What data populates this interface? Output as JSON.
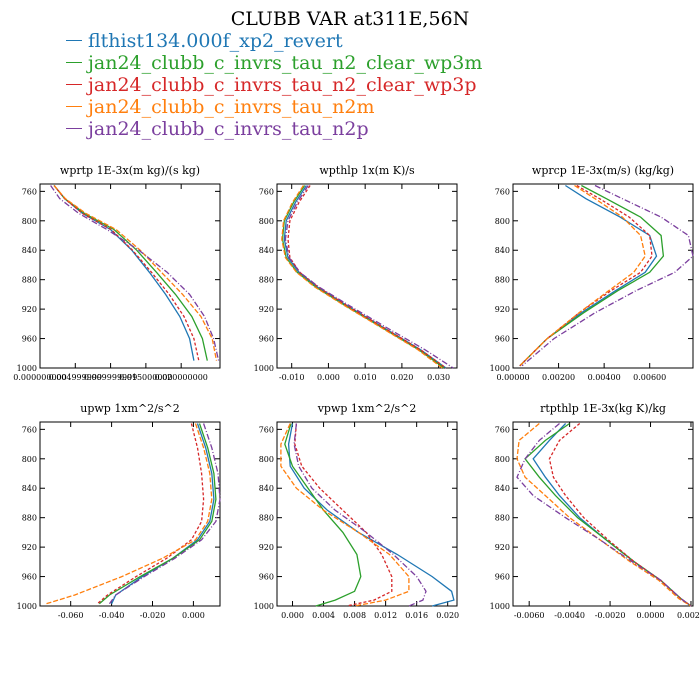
{
  "title": "CLUBB VAR at311E,56N",
  "legend": [
    {
      "label": "flthist134.000f_xp2_revert",
      "color": "#1f77b4"
    },
    {
      "label": "jan24_clubb_c_invrs_tau_n2_clear_wp3m",
      "color": "#2ca02c"
    },
    {
      "label": "jan24_clubb_c_invrs_tau_n2_clear_wp3p",
      "color": "#d62728"
    },
    {
      "label": "jan24_clubb_c_invrs_tau_n2m",
      "color": "#ff7f0e"
    },
    {
      "label": "jan24_clubb_c_invrs_tau_n2p",
      "color": "#7b3f9e"
    }
  ],
  "chart_data": [
    {
      "type": "line",
      "title": "wprtp  1E-3x(m kg)/(s kg)",
      "xlim": [
        0.0,
        0.0255
      ],
      "ylim": [
        1000,
        750
      ],
      "yticks": [
        760,
        800,
        840,
        880,
        920,
        960,
        1000
      ],
      "xticks": [
        0.0,
        0.005,
        0.01,
        0.015,
        0.02
      ],
      "xtick_labels": [
        "0.000000000",
        "0.004999999",
        "0.009999999",
        "0.015000000",
        "0.020000000"
      ],
      "series": [
        {
          "x": [
            0.002,
            0.0035,
            0.006,
            0.01,
            0.013,
            0.0155,
            0.0178,
            0.0198,
            0.0212,
            0.0218
          ],
          "y": [
            752,
            770,
            790,
            812,
            840,
            870,
            900,
            930,
            960,
            990
          ]
        },
        {
          "x": [
            0.002,
            0.0035,
            0.0063,
            0.0105,
            0.0137,
            0.0165,
            0.0192,
            0.0215,
            0.023,
            0.0237
          ],
          "y": [
            752,
            770,
            790,
            812,
            840,
            870,
            900,
            930,
            960,
            990
          ]
        },
        {
          "x": [
            0.002,
            0.0035,
            0.006,
            0.0101,
            0.0131,
            0.0158,
            0.0183,
            0.0204,
            0.0218,
            0.0225
          ],
          "y": [
            752,
            770,
            790,
            812,
            840,
            870,
            900,
            930,
            960,
            990
          ]
        },
        {
          "x": [
            0.002,
            0.0036,
            0.0065,
            0.0108,
            0.0142,
            0.0172,
            0.0202,
            0.0228,
            0.0244,
            0.025
          ],
          "y": [
            752,
            770,
            790,
            812,
            840,
            870,
            900,
            930,
            960,
            990
          ]
        },
        {
          "x": [
            0.0015,
            0.0028,
            0.0055,
            0.0095,
            0.014,
            0.018,
            0.0212,
            0.0233,
            0.0246,
            0.0253
          ],
          "y": [
            752,
            770,
            790,
            812,
            840,
            870,
            900,
            930,
            960,
            990
          ]
        }
      ]
    },
    {
      "type": "line",
      "title": "wpthlp  1x(m K)/s",
      "xlim": [
        -0.014,
        0.035
      ],
      "ylim": [
        1000,
        750
      ],
      "yticks": [
        760,
        800,
        840,
        880,
        920,
        960,
        1000
      ],
      "xticks": [
        -0.01,
        0.0,
        0.01,
        0.02,
        0.03
      ],
      "xtick_labels": [
        "-0.010",
        "0.000",
        "0.010",
        "0.020",
        "0.030"
      ],
      "series": [
        {
          "x": [
            -0.006,
            -0.009,
            -0.0115,
            -0.012,
            -0.011,
            -0.008,
            -0.003,
            0.005,
            0.015,
            0.025,
            0.032
          ],
          "y": [
            752,
            775,
            800,
            825,
            850,
            870,
            890,
            915,
            945,
            975,
            1000
          ]
        },
        {
          "x": [
            -0.0065,
            -0.0095,
            -0.012,
            -0.0125,
            -0.0115,
            -0.0085,
            -0.0035,
            0.0045,
            0.0145,
            0.0245,
            0.0315
          ],
          "y": [
            752,
            775,
            800,
            825,
            850,
            870,
            890,
            915,
            945,
            975,
            1000
          ]
        },
        {
          "x": [
            -0.005,
            -0.008,
            -0.0105,
            -0.011,
            -0.0105,
            -0.0078,
            -0.0028,
            0.005,
            0.015,
            0.025,
            0.032
          ],
          "y": [
            752,
            775,
            800,
            825,
            850,
            870,
            890,
            915,
            945,
            975,
            1000
          ]
        },
        {
          "x": [
            -0.0068,
            -0.0098,
            -0.0122,
            -0.0127,
            -0.0117,
            -0.0087,
            -0.0037,
            0.0043,
            0.0143,
            0.0243,
            0.031
          ],
          "y": [
            752,
            775,
            800,
            825,
            850,
            870,
            890,
            915,
            945,
            975,
            1000
          ]
        },
        {
          "x": [
            -0.0055,
            -0.0085,
            -0.011,
            -0.0117,
            -0.0107,
            -0.0078,
            -0.0026,
            0.0056,
            0.0158,
            0.0262,
            0.034
          ],
          "y": [
            752,
            775,
            800,
            825,
            850,
            870,
            890,
            915,
            945,
            975,
            1000
          ]
        }
      ]
    },
    {
      "type": "line",
      "title": "wprcp  1E-3x(m/s) (kg/kg)",
      "xlim": [
        0.0,
        0.0079
      ],
      "ylim": [
        1000,
        750
      ],
      "yticks": [
        760,
        800,
        840,
        880,
        920,
        960,
        1000
      ],
      "xticks": [
        0.0,
        0.002,
        0.004,
        0.006
      ],
      "xtick_labels": [
        "0.00000",
        "0.00200",
        "0.00400",
        "0.00600"
      ],
      "series": [
        {
          "x": [
            0.0023,
            0.0032,
            0.0047,
            0.006,
            0.0063,
            0.0058,
            0.0045,
            0.003,
            0.0015,
            0.0003
          ],
          "y": [
            752,
            770,
            795,
            820,
            848,
            870,
            895,
            925,
            960,
            997
          ]
        },
        {
          "x": [
            0.003,
            0.0041,
            0.0056,
            0.0065,
            0.0066,
            0.006,
            0.0046,
            0.0031,
            0.0015,
            0.0003
          ],
          "y": [
            752,
            770,
            795,
            820,
            848,
            870,
            895,
            925,
            960,
            997
          ]
        },
        {
          "x": [
            0.0028,
            0.0038,
            0.0051,
            0.006,
            0.0061,
            0.0056,
            0.0043,
            0.0029,
            0.0015,
            0.0003
          ],
          "y": [
            752,
            770,
            795,
            820,
            848,
            870,
            895,
            925,
            960,
            997
          ]
        },
        {
          "x": [
            0.0027,
            0.0036,
            0.0048,
            0.0056,
            0.0058,
            0.0053,
            0.0042,
            0.0029,
            0.0015,
            0.0003
          ],
          "y": [
            752,
            770,
            795,
            820,
            848,
            870,
            895,
            925,
            960,
            997
          ]
        },
        {
          "x": [
            0.0036,
            0.0048,
            0.0065,
            0.0077,
            0.0079,
            0.0071,
            0.0054,
            0.0036,
            0.0018,
            0.0004
          ],
          "y": [
            752,
            770,
            795,
            820,
            848,
            870,
            895,
            925,
            960,
            997
          ]
        }
      ]
    },
    {
      "type": "line",
      "title": "upwp  1xm^2/s^2",
      "xlim": [
        -0.075,
        0.013
      ],
      "ylim": [
        1000,
        750
      ],
      "yticks": [
        760,
        800,
        840,
        880,
        920,
        960,
        1000
      ],
      "xticks": [
        -0.06,
        -0.04,
        -0.02,
        0.0
      ],
      "xtick_labels": [
        "-0.060",
        "-0.040",
        "-0.020",
        "0.000"
      ],
      "series": [
        {
          "x": [
            0.002,
            0.006,
            0.009,
            0.01,
            0.008,
            0.002,
            -0.01,
            -0.025,
            -0.038,
            -0.04
          ],
          "y": [
            752,
            785,
            820,
            855,
            885,
            910,
            935,
            960,
            985,
            997
          ]
        },
        {
          "x": [
            0.003,
            0.007,
            0.01,
            0.011,
            0.009,
            0.003,
            -0.01,
            -0.026,
            -0.041,
            -0.046
          ],
          "y": [
            752,
            785,
            820,
            855,
            885,
            910,
            935,
            960,
            985,
            997
          ]
        },
        {
          "x": [
            -0.001,
            0.002,
            0.004,
            0.005,
            0.004,
            -0.001,
            -0.013,
            -0.028,
            -0.042,
            -0.047
          ],
          "y": [
            752,
            785,
            820,
            855,
            885,
            910,
            935,
            960,
            985,
            997
          ]
        },
        {
          "x": [
            0.001,
            0.005,
            0.008,
            0.009,
            0.007,
            0.001,
            -0.015,
            -0.035,
            -0.058,
            -0.072
          ],
          "y": [
            752,
            785,
            820,
            855,
            885,
            910,
            935,
            960,
            985,
            997
          ]
        },
        {
          "x": [
            0.005,
            0.009,
            0.012,
            0.013,
            0.011,
            0.004,
            -0.009,
            -0.024,
            -0.038,
            -0.041
          ],
          "y": [
            752,
            785,
            820,
            855,
            885,
            910,
            935,
            960,
            985,
            997
          ]
        }
      ]
    },
    {
      "type": "line",
      "title": "vpwp  1xm^2/s^2",
      "xlim": [
        -0.002,
        0.0212
      ],
      "ylim": [
        1000,
        750
      ],
      "yticks": [
        760,
        800,
        840,
        880,
        920,
        960,
        1000
      ],
      "xticks": [
        0.0,
        0.004,
        0.008,
        0.012,
        0.016,
        0.02
      ],
      "xtick_labels": [
        "0.000",
        "0.004",
        "0.008",
        "0.012",
        "0.016",
        "0.020"
      ],
      "series": [
        {
          "x": [
            0.0,
            -0.0005,
            -0.0003,
            0.0015,
            0.0045,
            0.0085,
            0.0135,
            0.018,
            0.0205,
            0.0208,
            0.018
          ],
          "y": [
            752,
            780,
            810,
            840,
            870,
            900,
            930,
            960,
            980,
            992,
            1000
          ]
        },
        {
          "x": [
            -0.0002,
            -0.001,
            0.0,
            0.002,
            0.004,
            0.0065,
            0.0083,
            0.0088,
            0.008,
            0.0055,
            0.003
          ],
          "y": [
            752,
            780,
            810,
            840,
            870,
            900,
            930,
            960,
            980,
            992,
            1000
          ]
        },
        {
          "x": [
            0.0005,
            0.0003,
            0.0012,
            0.0035,
            0.0065,
            0.0095,
            0.0115,
            0.0128,
            0.0128,
            0.0105,
            0.007
          ],
          "y": [
            752,
            780,
            810,
            840,
            870,
            900,
            930,
            960,
            980,
            992,
            1000
          ]
        },
        {
          "x": [
            -0.0003,
            -0.0015,
            -0.0015,
            0.0005,
            0.004,
            0.0085,
            0.0125,
            0.015,
            0.015,
            0.012,
            0.008
          ],
          "y": [
            752,
            780,
            810,
            840,
            870,
            900,
            930,
            960,
            980,
            992,
            1000
          ]
        },
        {
          "x": [
            0.0005,
            0.0002,
            0.0008,
            0.0025,
            0.0055,
            0.0095,
            0.013,
            0.016,
            0.0172,
            0.0168,
            0.015
          ],
          "y": [
            752,
            780,
            810,
            840,
            870,
            900,
            930,
            960,
            980,
            992,
            1000
          ]
        }
      ]
    },
    {
      "type": "line",
      "title": "rtpthlp  1E-3x(kg K)/kg",
      "xlim": [
        -0.0068,
        0.0021
      ],
      "ylim": [
        1000,
        750
      ],
      "yticks": [
        760,
        800,
        840,
        880,
        920,
        960,
        1000
      ],
      "xticks": [
        -0.006,
        -0.004,
        -0.002,
        0.0,
        0.002
      ],
      "xtick_labels": [
        "-0.0060",
        "-0.0040",
        "-0.0020",
        "0.0000",
        "0.0020"
      ],
      "series": [
        {
          "x": [
            -0.0042,
            -0.005,
            -0.0058,
            -0.0052,
            -0.0045,
            -0.0035,
            -0.0022,
            -0.0008,
            0.0005,
            0.0015,
            0.002
          ],
          "y": [
            752,
            775,
            800,
            825,
            850,
            880,
            910,
            940,
            965,
            990,
            1000
          ]
        },
        {
          "x": [
            -0.004,
            -0.0052,
            -0.0062,
            -0.0055,
            -0.0047,
            -0.0036,
            -0.0022,
            -0.0008,
            0.0005,
            0.0015,
            0.002
          ],
          "y": [
            752,
            775,
            800,
            825,
            850,
            880,
            910,
            940,
            965,
            990,
            1000
          ]
        },
        {
          "x": [
            -0.0035,
            -0.0045,
            -0.005,
            -0.0048,
            -0.0042,
            -0.0033,
            -0.0021,
            -0.0008,
            0.0005,
            0.0015,
            0.002
          ],
          "y": [
            752,
            775,
            800,
            825,
            850,
            880,
            910,
            940,
            965,
            990,
            1000
          ]
        },
        {
          "x": [
            -0.0055,
            -0.0065,
            -0.0066,
            -0.0062,
            -0.0052,
            -0.004,
            -0.0025,
            -0.001,
            0.0004,
            0.0014,
            0.002
          ],
          "y": [
            752,
            775,
            800,
            825,
            850,
            880,
            910,
            940,
            965,
            990,
            1000
          ]
        },
        {
          "x": [
            -0.0045,
            -0.0055,
            -0.0062,
            -0.0066,
            -0.0058,
            -0.0042,
            -0.0025,
            -0.0009,
            0.0005,
            0.0015,
            0.002
          ],
          "y": [
            752,
            775,
            800,
            825,
            850,
            880,
            910,
            940,
            965,
            990,
            1000
          ]
        }
      ]
    }
  ]
}
